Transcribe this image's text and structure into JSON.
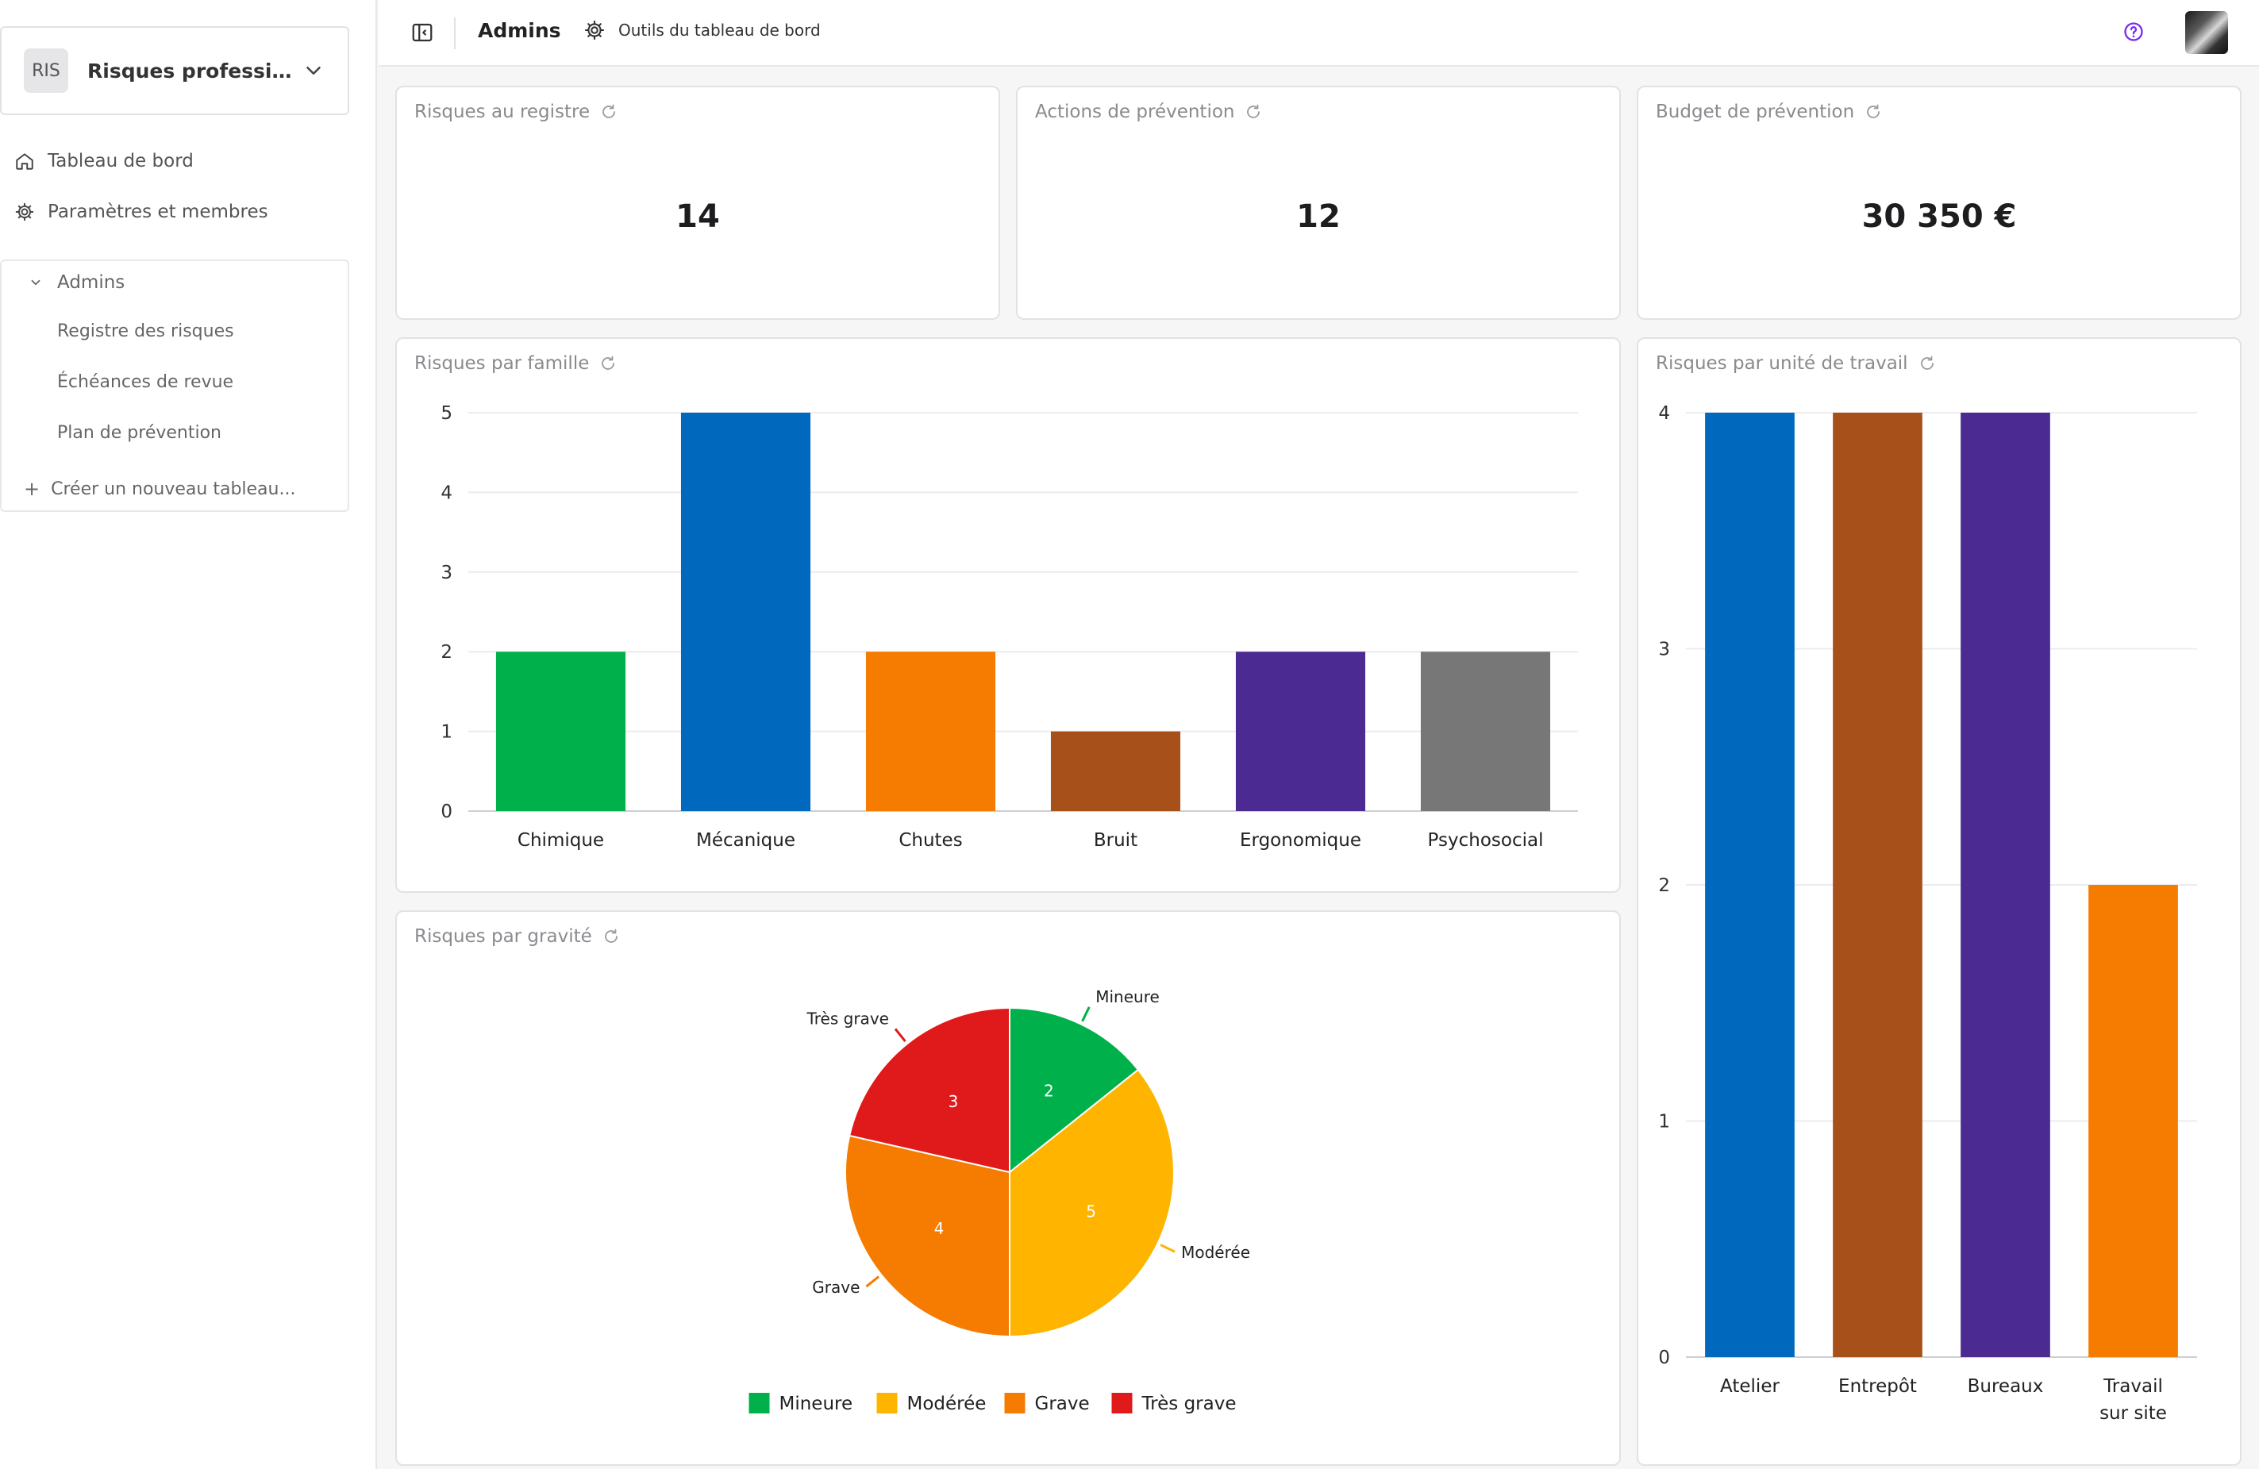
{
  "sidebar": {
    "workspace": {
      "badge": "RIS",
      "name": "Risques professionne..."
    },
    "nav": [
      {
        "label": "Tableau de bord",
        "icon": "home-icon"
      },
      {
        "label": "Paramètres et membres",
        "icon": "gear-icon"
      }
    ],
    "group": {
      "label": "Admins",
      "links": [
        "Registre des risques",
        "Échéances de revue",
        "Plan de prévention"
      ],
      "create_label": "Créer un nouveau tableau..."
    }
  },
  "header": {
    "title": "Admins",
    "tools_label": "Outils du tableau de bord"
  },
  "kpis": [
    {
      "title": "Risques au registre",
      "value": "14"
    },
    {
      "title": "Actions de prévention",
      "value": "12"
    },
    {
      "title": "Budget de prévention",
      "value": "30 350 €"
    }
  ],
  "charts_titles": {
    "famille": "Risques par famille",
    "unite": "Risques par unité de travail",
    "gravite": "Risques par gravité"
  },
  "chart_data": [
    {
      "type": "bar",
      "title": "Risques par famille",
      "categories": [
        "Chimique",
        "Mécanique",
        "Chutes",
        "Bruit",
        "Ergonomique",
        "Psychosocial"
      ],
      "values": [
        2,
        5,
        2,
        1,
        2,
        2
      ],
      "colors": [
        "#00b04a",
        "#0068bd",
        "#f57c00",
        "#a8501a",
        "#4b2a91",
        "#777777"
      ],
      "ylim": [
        0,
        5
      ],
      "yticks": [
        0,
        1,
        2,
        3,
        4,
        5
      ],
      "grid": true
    },
    {
      "type": "bar",
      "title": "Risques par unité de travail",
      "categories": [
        "Atelier",
        "Entrepôt",
        "Bureaux",
        "Travail sur site"
      ],
      "category_lines": [
        [
          "Atelier"
        ],
        [
          "Entrepôt"
        ],
        [
          "Bureaux"
        ],
        [
          "Travail",
          "sur site"
        ]
      ],
      "values": [
        4,
        4,
        4,
        2
      ],
      "colors": [
        "#0068bd",
        "#a8501a",
        "#4b2a91",
        "#f57c00"
      ],
      "ylim": [
        0,
        4
      ],
      "yticks": [
        0,
        1,
        2,
        3,
        4
      ],
      "grid": true
    },
    {
      "type": "pie",
      "title": "Risques par gravité",
      "categories": [
        "Mineure",
        "Modérée",
        "Grave",
        "Très grave"
      ],
      "values": [
        2,
        5,
        4,
        3
      ],
      "colors": [
        "#00b04a",
        "#ffb400",
        "#f57c00",
        "#e01a1a"
      ],
      "legend": "bottom"
    }
  ]
}
